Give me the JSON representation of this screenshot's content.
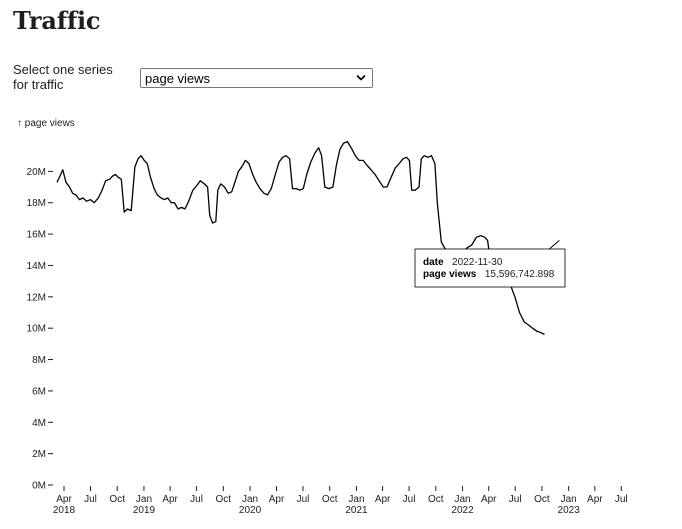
{
  "page": {
    "title": "Traffic"
  },
  "controls": {
    "series_label_line1": "Select one series",
    "series_label_line2": "for traffic",
    "selected_series": "page views"
  },
  "tooltip": {
    "date_key": "date",
    "date_value": "2022-11-30",
    "metric_key": "page views",
    "metric_value": "15,596,742.898"
  },
  "colors": {
    "line": "#000000",
    "text": "#1b1e23"
  },
  "chart_data": {
    "type": "line",
    "ylabel": "↑ page views",
    "ylim": [
      0,
      22000000
    ],
    "y_ticks": [
      0,
      2000000,
      4000000,
      6000000,
      8000000,
      10000000,
      12000000,
      14000000,
      16000000,
      18000000,
      20000000
    ],
    "y_tick_labels": [
      "0M",
      "2M",
      "4M",
      "6M",
      "8M",
      "10M",
      "12M",
      "14M",
      "16M",
      "18M",
      "20M"
    ],
    "xlim": [
      "2018-03-01",
      "2023-07-31"
    ],
    "x_ticks": [
      {
        "date": "2018-04-01",
        "month": "Apr",
        "year": "2018"
      },
      {
        "date": "2018-07-01",
        "month": "Jul",
        "year": ""
      },
      {
        "date": "2018-10-01",
        "month": "Oct",
        "year": ""
      },
      {
        "date": "2019-01-01",
        "month": "Jan",
        "year": "2019"
      },
      {
        "date": "2019-04-01",
        "month": "Apr",
        "year": ""
      },
      {
        "date": "2019-07-01",
        "month": "Jul",
        "year": ""
      },
      {
        "date": "2019-10-01",
        "month": "Oct",
        "year": ""
      },
      {
        "date": "2020-01-01",
        "month": "Jan",
        "year": "2020"
      },
      {
        "date": "2020-04-01",
        "month": "Apr",
        "year": ""
      },
      {
        "date": "2020-07-01",
        "month": "Jul",
        "year": ""
      },
      {
        "date": "2020-10-01",
        "month": "Oct",
        "year": ""
      },
      {
        "date": "2021-01-01",
        "month": "Jan",
        "year": "2021"
      },
      {
        "date": "2021-04-01",
        "month": "Apr",
        "year": ""
      },
      {
        "date": "2021-07-01",
        "month": "Jul",
        "year": ""
      },
      {
        "date": "2021-10-01",
        "month": "Oct",
        "year": ""
      },
      {
        "date": "2022-01-01",
        "month": "Jan",
        "year": "2022"
      },
      {
        "date": "2022-04-01",
        "month": "Apr",
        "year": ""
      },
      {
        "date": "2022-07-01",
        "month": "Jul",
        "year": ""
      },
      {
        "date": "2022-10-01",
        "month": "Oct",
        "year": ""
      },
      {
        "date": "2023-01-01",
        "month": "Jan",
        "year": "2023"
      },
      {
        "date": "2023-04-01",
        "month": "Apr",
        "year": ""
      },
      {
        "date": "2023-07-01",
        "month": "Jul",
        "year": ""
      }
    ],
    "grid": false,
    "highlight": {
      "date": "2022-11-30",
      "value": 15596742.898
    },
    "series": [
      {
        "points": [
          [
            "2018-03-08",
            19.3
          ],
          [
            "2018-03-18",
            19.7
          ],
          [
            "2018-03-28",
            20.1
          ],
          [
            "2018-04-08",
            19.3
          ],
          [
            "2018-04-20",
            19.0
          ],
          [
            "2018-05-01",
            18.6
          ],
          [
            "2018-05-12",
            18.5
          ],
          [
            "2018-05-24",
            18.2
          ],
          [
            "2018-06-05",
            18.3
          ],
          [
            "2018-06-18",
            18.1
          ],
          [
            "2018-07-01",
            18.2
          ],
          [
            "2018-07-14",
            18.0
          ],
          [
            "2018-07-28",
            18.3
          ],
          [
            "2018-08-10",
            18.8
          ],
          [
            "2018-08-22",
            19.4
          ],
          [
            "2018-09-05",
            19.5
          ],
          [
            "2018-09-15",
            19.7
          ],
          [
            "2018-09-25",
            19.8
          ],
          [
            "2018-10-05",
            19.6
          ],
          [
            "2018-10-15",
            19.5
          ],
          [
            "2018-10-25",
            17.4
          ],
          [
            "2018-11-05",
            17.6
          ],
          [
            "2018-11-18",
            17.5
          ],
          [
            "2018-12-01",
            20.3
          ],
          [
            "2018-12-12",
            20.8
          ],
          [
            "2018-12-22",
            21.0
          ],
          [
            "2019-01-02",
            20.7
          ],
          [
            "2019-01-12",
            20.5
          ],
          [
            "2019-01-24",
            19.6
          ],
          [
            "2019-02-05",
            18.9
          ],
          [
            "2019-02-16",
            18.5
          ],
          [
            "2019-03-01",
            18.3
          ],
          [
            "2019-03-12",
            18.2
          ],
          [
            "2019-03-24",
            18.3
          ],
          [
            "2019-04-05",
            18.0
          ],
          [
            "2019-04-16",
            18.0
          ],
          [
            "2019-04-28",
            17.6
          ],
          [
            "2019-05-10",
            17.7
          ],
          [
            "2019-05-22",
            17.6
          ],
          [
            "2019-06-04",
            18.1
          ],
          [
            "2019-06-18",
            18.8
          ],
          [
            "2019-07-02",
            19.1
          ],
          [
            "2019-07-14",
            19.4
          ],
          [
            "2019-07-28",
            19.2
          ],
          [
            "2019-08-08",
            19.0
          ],
          [
            "2019-08-15",
            17.2
          ],
          [
            "2019-08-25",
            16.7
          ],
          [
            "2019-09-05",
            16.8
          ],
          [
            "2019-09-12",
            18.8
          ],
          [
            "2019-09-22",
            19.2
          ],
          [
            "2019-10-05",
            19.0
          ],
          [
            "2019-10-18",
            18.6
          ],
          [
            "2019-10-30",
            18.7
          ],
          [
            "2019-11-10",
            19.3
          ],
          [
            "2019-11-22",
            20.0
          ],
          [
            "2019-12-04",
            20.3
          ],
          [
            "2019-12-16",
            20.7
          ],
          [
            "2019-12-28",
            20.5
          ],
          [
            "2020-01-10",
            19.8
          ],
          [
            "2020-01-22",
            19.3
          ],
          [
            "2020-02-04",
            18.9
          ],
          [
            "2020-02-18",
            18.6
          ],
          [
            "2020-03-01",
            18.5
          ],
          [
            "2020-03-14",
            18.9
          ],
          [
            "2020-03-28",
            19.8
          ],
          [
            "2020-04-10",
            20.6
          ],
          [
            "2020-04-22",
            20.9
          ],
          [
            "2020-05-04",
            21.0
          ],
          [
            "2020-05-16",
            20.8
          ],
          [
            "2020-05-26",
            18.9
          ],
          [
            "2020-06-08",
            18.9
          ],
          [
            "2020-06-20",
            18.8
          ],
          [
            "2020-07-02",
            18.9
          ],
          [
            "2020-07-14",
            19.8
          ],
          [
            "2020-07-28",
            20.6
          ],
          [
            "2020-08-12",
            21.2
          ],
          [
            "2020-08-24",
            21.5
          ],
          [
            "2020-09-03",
            21.0
          ],
          [
            "2020-09-14",
            19.0
          ],
          [
            "2020-09-28",
            18.9
          ],
          [
            "2020-10-12",
            19.0
          ],
          [
            "2020-10-24",
            20.4
          ],
          [
            "2020-11-05",
            21.4
          ],
          [
            "2020-11-18",
            21.8
          ],
          [
            "2020-12-01",
            21.9
          ],
          [
            "2020-12-14",
            21.5
          ],
          [
            "2020-12-28",
            21.0
          ],
          [
            "2021-01-10",
            20.7
          ],
          [
            "2021-01-24",
            20.7
          ],
          [
            "2021-02-06",
            20.4
          ],
          [
            "2021-02-20",
            20.1
          ],
          [
            "2021-03-06",
            19.8
          ],
          [
            "2021-03-20",
            19.4
          ],
          [
            "2021-04-03",
            19.0
          ],
          [
            "2021-04-16",
            19.0
          ],
          [
            "2021-04-30",
            19.6
          ],
          [
            "2021-05-14",
            20.2
          ],
          [
            "2021-05-28",
            20.5
          ],
          [
            "2021-06-10",
            20.8
          ],
          [
            "2021-06-22",
            20.9
          ],
          [
            "2021-07-02",
            20.7
          ],
          [
            "2021-07-10",
            18.8
          ],
          [
            "2021-07-22",
            18.8
          ],
          [
            "2021-08-04",
            19.0
          ],
          [
            "2021-08-12",
            20.8
          ],
          [
            "2021-08-22",
            21.0
          ],
          [
            "2021-09-04",
            20.9
          ],
          [
            "2021-09-16",
            21.0
          ],
          [
            "2021-09-28",
            20.5
          ],
          [
            "2021-10-06",
            18.0
          ],
          [
            "2021-10-20",
            15.5
          ],
          [
            "2021-11-04",
            15.0
          ],
          [
            "2021-11-20",
            14.8
          ],
          [
            "2021-12-04",
            14.9
          ],
          [
            "2021-12-18",
            14.6
          ],
          [
            "2022-01-01",
            14.7
          ],
          [
            "2022-01-15",
            15.1
          ],
          [
            "2022-02-01",
            15.3
          ],
          [
            "2022-02-18",
            15.8
          ],
          [
            "2022-03-04",
            15.9
          ],
          [
            "2022-03-18",
            15.8
          ],
          [
            "2022-03-28",
            15.6
          ],
          [
            "2022-04-08",
            14.1
          ],
          [
            "2022-04-20",
            13.5
          ],
          [
            "2022-05-04",
            13.1
          ],
          [
            "2022-05-16",
            13.8
          ],
          [
            "2022-05-30",
            13.5
          ],
          [
            "2022-06-14",
            12.8
          ],
          [
            "2022-06-30",
            12.0
          ],
          [
            "2022-07-16",
            11.0
          ],
          [
            "2022-08-01",
            10.4
          ],
          [
            "2022-08-16",
            10.2
          ],
          [
            "2022-08-30",
            10.0
          ],
          [
            "2022-09-14",
            9.8
          ],
          [
            "2022-09-30",
            9.7
          ],
          [
            "2022-10-10",
            9.6
          ]
        ]
      }
    ]
  }
}
